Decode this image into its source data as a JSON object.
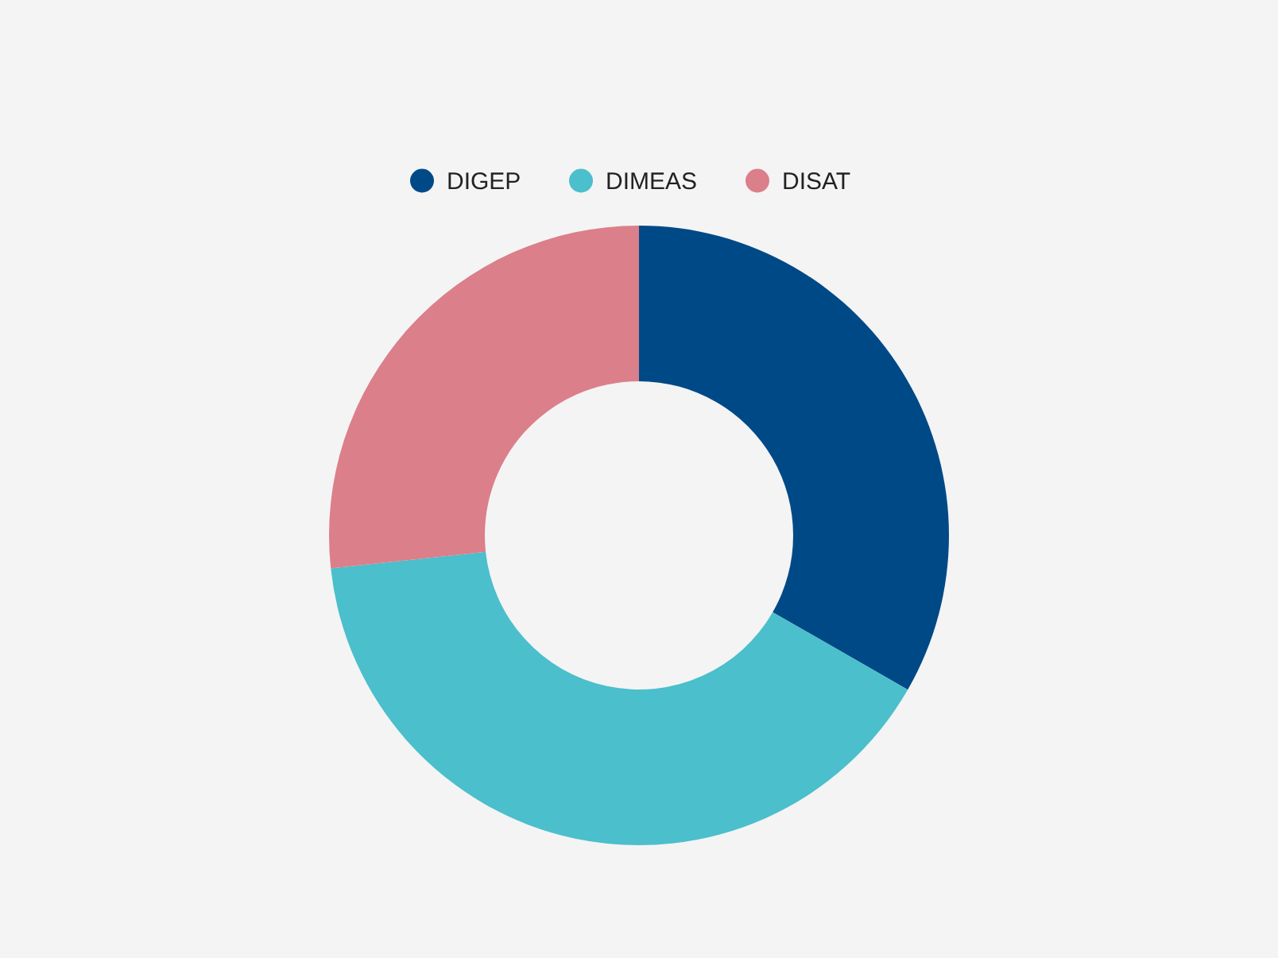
{
  "chart_data": {
    "type": "donut",
    "categories": [
      "DIGEP",
      "DIMEAS",
      "DISAT"
    ],
    "values": [
      33.3,
      40,
      26.7
    ],
    "colors": [
      "#004987",
      "#4bbfcb",
      "#db7f8a"
    ],
    "legend": "top"
  }
}
